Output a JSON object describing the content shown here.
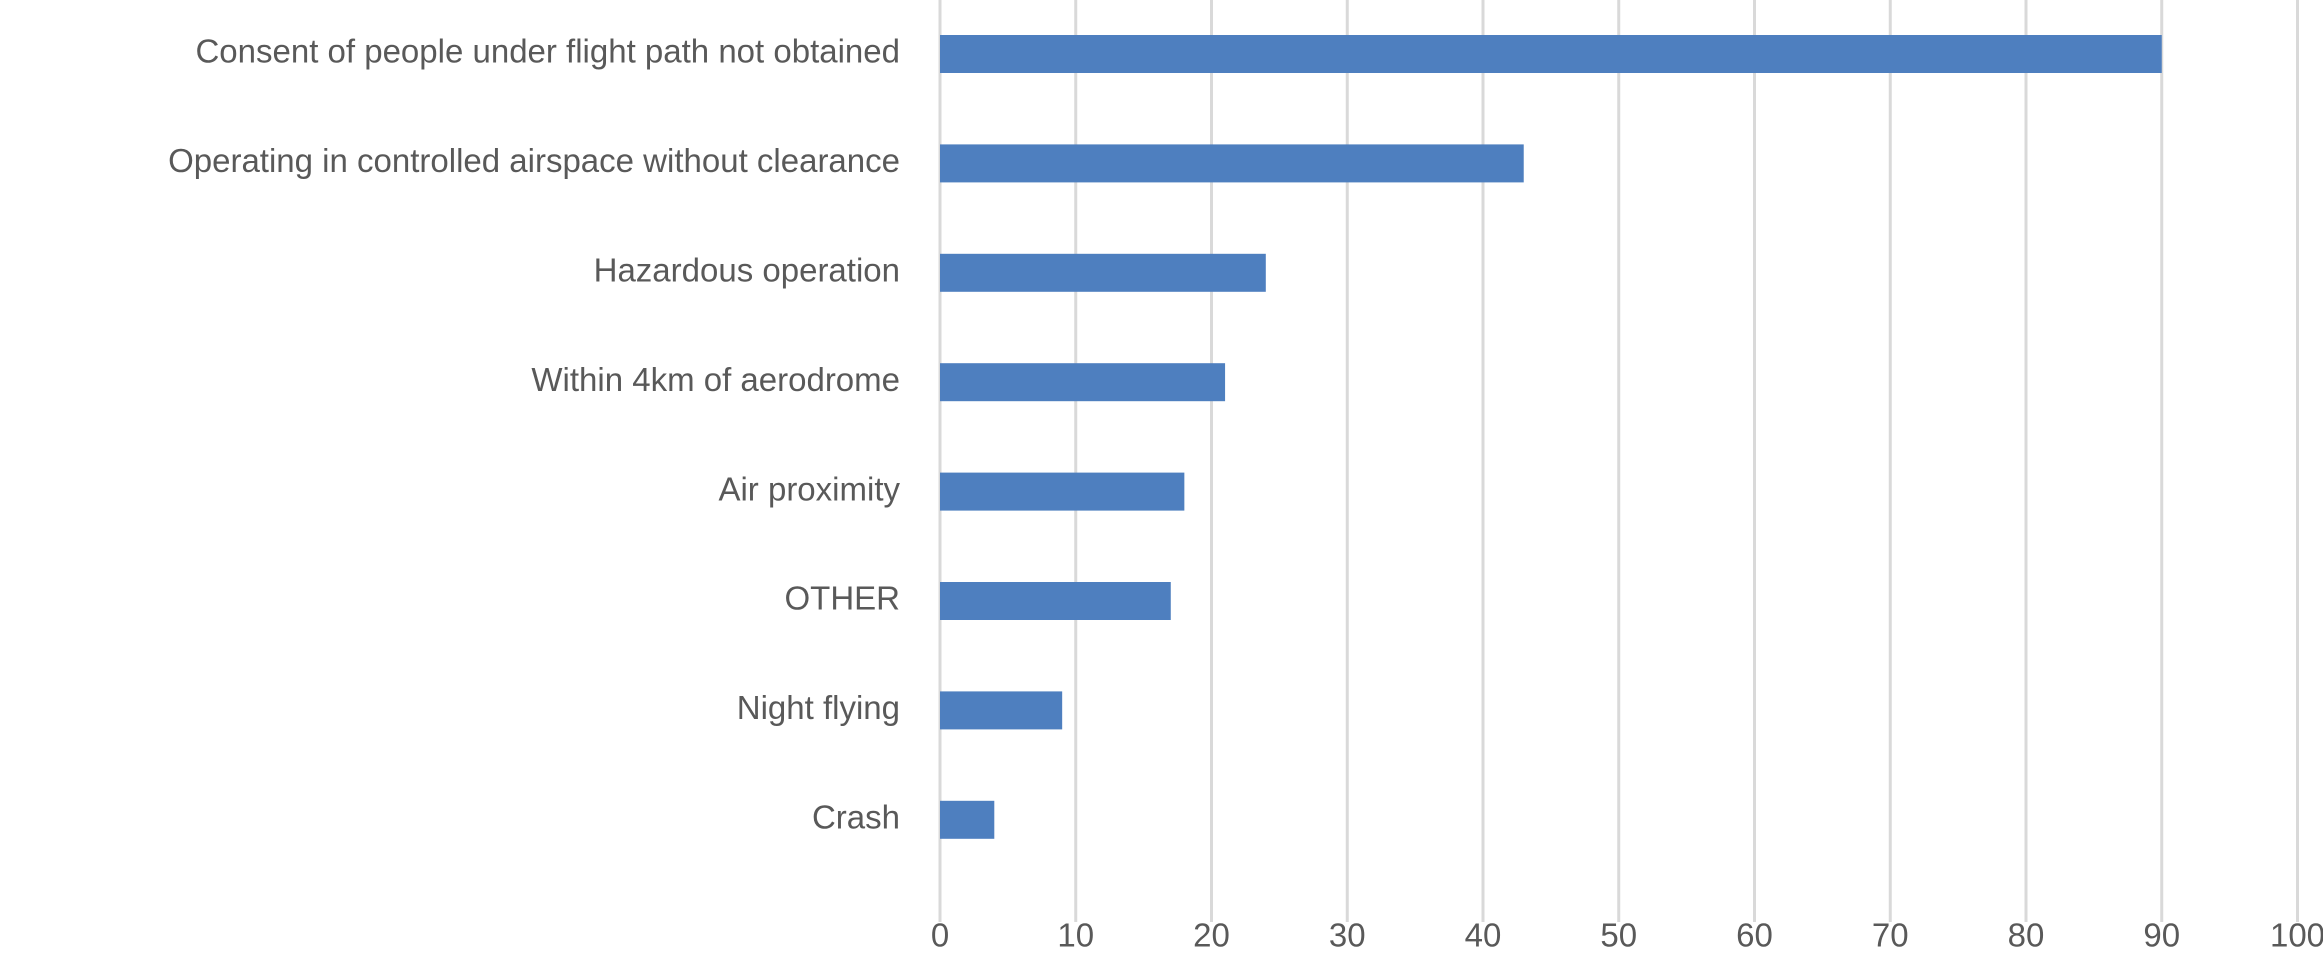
{
  "chart_data": {
    "type": "bar",
    "orientation": "horizontal",
    "title": "",
    "xlabel": "",
    "ylabel": "",
    "categories": [
      "Consent of people under flight path not obtained",
      "Operating in controlled airspace without clearance",
      "Hazardous operation",
      "Within 4km of aerodrome",
      "Air proximity",
      "OTHER",
      "Night flying",
      "Crash"
    ],
    "values": [
      90,
      43,
      24,
      21,
      18,
      17,
      9,
      4
    ],
    "xlim": [
      0,
      100
    ],
    "xticks": [
      0,
      10,
      20,
      30,
      40,
      50,
      60,
      70,
      80,
      90,
      100
    ],
    "grid": "vertical",
    "legend": "none",
    "bar_color": "#4e7fbf",
    "grid_color": "#d9d9d9",
    "text_color": "#595959"
  }
}
